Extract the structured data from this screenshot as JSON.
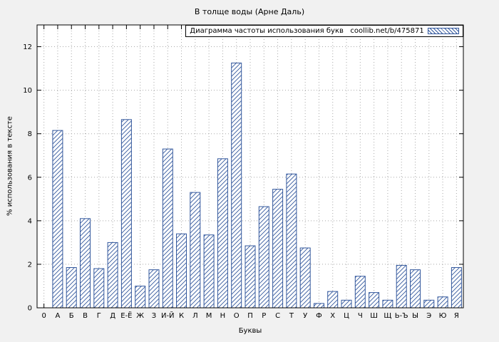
{
  "chart_data": {
    "type": "bar",
    "title": "В толще воды (Арне Даль)",
    "legend": "Диаграмма частоты использования букв   coollib.net/b/475871",
    "xlabel": "Буквы",
    "ylabel": "% использования в тексте",
    "categories": [
      "0",
      "А",
      "Б",
      "В",
      "Г",
      "Д",
      "Е-Ё",
      "Ж",
      "З",
      "И-Й",
      "К",
      "Л",
      "М",
      "Н",
      "О",
      "П",
      "Р",
      "С",
      "Т",
      "У",
      "Ф",
      "Х",
      "Ц",
      "Ч",
      "Ш",
      "Щ",
      "Ь-Ъ",
      "Ы",
      "Э",
      "Ю",
      "Я"
    ],
    "values": [
      0,
      8.15,
      1.85,
      4.1,
      1.8,
      3.0,
      8.65,
      1.0,
      1.75,
      7.3,
      3.4,
      5.3,
      3.35,
      6.85,
      11.25,
      2.85,
      4.65,
      5.45,
      6.15,
      2.75,
      0.2,
      0.75,
      0.35,
      1.45,
      0.7,
      0.35,
      1.95,
      1.75,
      0.35,
      0.5,
      1.85
    ],
    "ylim": [
      0,
      13
    ],
    "yticks": [
      0,
      2,
      4,
      6,
      8,
      10,
      12
    ],
    "grid": "dotted",
    "legend_position": "top-right",
    "bar_fill": "hatch-diagonal",
    "colors": {
      "bar": "#33589d",
      "plot_bg": "#ffffff",
      "page_bg": "#f1f1f1",
      "grid": "#a8a8a8",
      "axis": "#000000"
    }
  }
}
